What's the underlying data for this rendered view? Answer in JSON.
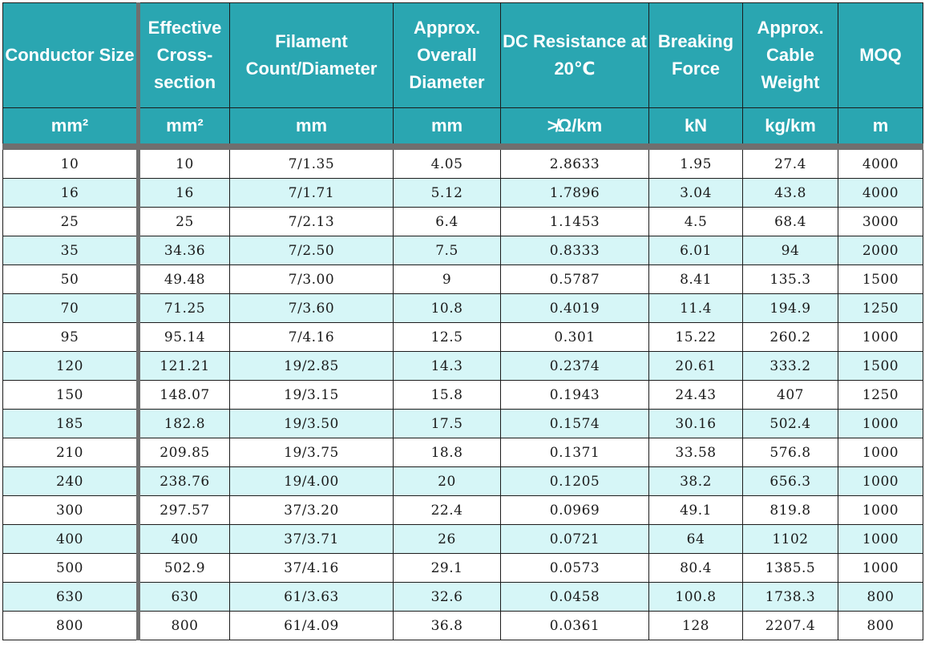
{
  "table": {
    "headers": [
      "Conductor Size",
      "Effective Cross-section",
      "Filament Count/Diameter",
      "Approx. Overall Diameter",
      "DC Resistance at 20℃",
      "Breaking Force",
      "Approx. Cable Weight",
      "MOQ"
    ],
    "units": [
      "mm²",
      "mm²",
      "mm",
      "mm",
      "≯Ω/km",
      "kN",
      "kg/km",
      "m"
    ],
    "rows": [
      [
        "10",
        "10",
        "7/1.35",
        "4.05",
        "2.8633",
        "1.95",
        "27.4",
        "4000"
      ],
      [
        "16",
        "16",
        "7/1.71",
        "5.12",
        "1.7896",
        "3.04",
        "43.8",
        "4000"
      ],
      [
        "25",
        "25",
        "7/2.13",
        "6.4",
        "1.1453",
        "4.5",
        "68.4",
        "3000"
      ],
      [
        "35",
        "34.36",
        "7/2.50",
        "7.5",
        "0.8333",
        "6.01",
        "94",
        "2000"
      ],
      [
        "50",
        "49.48",
        "7/3.00",
        "9",
        "0.5787",
        "8.41",
        "135.3",
        "1500"
      ],
      [
        "70",
        "71.25",
        "7/3.60",
        "10.8",
        "0.4019",
        "11.4",
        "194.9",
        "1250"
      ],
      [
        "95",
        "95.14",
        "7/4.16",
        "12.5",
        "0.301",
        "15.22",
        "260.2",
        "1000"
      ],
      [
        "120",
        "121.21",
        "19/2.85",
        "14.3",
        "0.2374",
        "20.61",
        "333.2",
        "1500"
      ],
      [
        "150",
        "148.07",
        "19/3.15",
        "15.8",
        "0.1943",
        "24.43",
        "407",
        "1250"
      ],
      [
        "185",
        "182.8",
        "19/3.50",
        "17.5",
        "0.1574",
        "30.16",
        "502.4",
        "1000"
      ],
      [
        "210",
        "209.85",
        "19/3.75",
        "18.8",
        "0.1371",
        "33.58",
        "576.8",
        "1000"
      ],
      [
        "240",
        "238.76",
        "19/4.00",
        "20",
        "0.1205",
        "38.2",
        "656.3",
        "1000"
      ],
      [
        "300",
        "297.57",
        "37/3.20",
        "22.4",
        "0.0969",
        "49.1",
        "819.8",
        "1000"
      ],
      [
        "400",
        "400",
        "37/3.71",
        "26",
        "0.0721",
        "64",
        "1102",
        "1000"
      ],
      [
        "500",
        "502.9",
        "37/4.16",
        "29.1",
        "0.0573",
        "80.4",
        "1385.5",
        "1000"
      ],
      [
        "630",
        "630",
        "61/3.63",
        "32.6",
        "0.0458",
        "100.8",
        "1738.3",
        "800"
      ],
      [
        "800",
        "800",
        "61/4.09",
        "36.8",
        "0.0361",
        "128",
        "2207.4",
        "800"
      ]
    ]
  }
}
